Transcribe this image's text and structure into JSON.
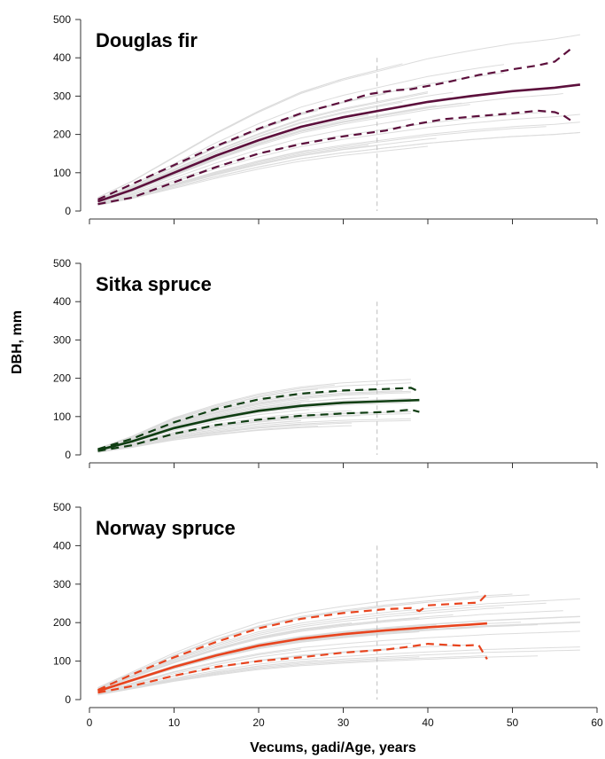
{
  "chart_data": {
    "type": "line",
    "ylabel": "DBH, mm",
    "xlabel": "Vecums, gadi/Age, years",
    "x_range": [
      0,
      60
    ],
    "x_ticks": [
      "0",
      "10",
      "20",
      "30",
      "40",
      "50",
      "60"
    ],
    "y_range": [
      0,
      500
    ],
    "y_ticks": [
      "0",
      "100",
      "200",
      "300",
      "400",
      "500"
    ],
    "reference_line_x": 34,
    "panels": [
      {
        "title": "Douglas fir",
        "color": "#5c0f3c",
        "mean": [
          [
            1,
            25
          ],
          [
            5,
            55
          ],
          [
            10,
            100
          ],
          [
            15,
            145
          ],
          [
            20,
            185
          ],
          [
            25,
            220
          ],
          [
            30,
            245
          ],
          [
            35,
            265
          ],
          [
            40,
            285
          ],
          [
            45,
            300
          ],
          [
            50,
            313
          ],
          [
            55,
            322
          ],
          [
            58,
            330
          ]
        ],
        "upper": [
          [
            1,
            30
          ],
          [
            5,
            70
          ],
          [
            10,
            120
          ],
          [
            15,
            170
          ],
          [
            20,
            215
          ],
          [
            25,
            255
          ],
          [
            30,
            285
          ],
          [
            33,
            305
          ],
          [
            36,
            315
          ],
          [
            38,
            318
          ],
          [
            42,
            335
          ],
          [
            46,
            355
          ],
          [
            50,
            370
          ],
          [
            53,
            380
          ],
          [
            55,
            390
          ],
          [
            57,
            425
          ]
        ],
        "lower": [
          [
            1,
            18
          ],
          [
            5,
            35
          ],
          [
            10,
            75
          ],
          [
            15,
            115
          ],
          [
            20,
            150
          ],
          [
            25,
            175
          ],
          [
            30,
            195
          ],
          [
            35,
            210
          ],
          [
            38,
            225
          ],
          [
            42,
            240
          ],
          [
            46,
            248
          ],
          [
            50,
            255
          ],
          [
            53,
            262
          ],
          [
            55,
            258
          ],
          [
            56,
            250
          ],
          [
            57,
            235
          ]
        ],
        "background_max_age": 58
      },
      {
        "title": "Sitka spruce",
        "color": "#0f3d12",
        "mean": [
          [
            1,
            12
          ],
          [
            5,
            35
          ],
          [
            10,
            70
          ],
          [
            15,
            95
          ],
          [
            20,
            115
          ],
          [
            25,
            128
          ],
          [
            30,
            136
          ],
          [
            35,
            140
          ],
          [
            39,
            143
          ]
        ],
        "upper": [
          [
            1,
            15
          ],
          [
            5,
            42
          ],
          [
            10,
            85
          ],
          [
            15,
            120
          ],
          [
            20,
            145
          ],
          [
            25,
            160
          ],
          [
            30,
            168
          ],
          [
            35,
            172
          ],
          [
            38,
            175
          ],
          [
            39,
            165
          ]
        ],
        "lower": [
          [
            1,
            10
          ],
          [
            5,
            25
          ],
          [
            10,
            55
          ],
          [
            15,
            78
          ],
          [
            20,
            92
          ],
          [
            25,
            102
          ],
          [
            30,
            108
          ],
          [
            35,
            112
          ],
          [
            38,
            118
          ],
          [
            39,
            112
          ]
        ],
        "background_max_age": 38
      },
      {
        "title": "Norway spruce",
        "color": "#e8441e",
        "mean": [
          [
            1,
            22
          ],
          [
            5,
            50
          ],
          [
            10,
            85
          ],
          [
            15,
            115
          ],
          [
            20,
            140
          ],
          [
            25,
            158
          ],
          [
            30,
            170
          ],
          [
            35,
            180
          ],
          [
            40,
            188
          ],
          [
            45,
            195
          ],
          [
            47,
            198
          ]
        ],
        "upper": [
          [
            1,
            25
          ],
          [
            5,
            65
          ],
          [
            10,
            110
          ],
          [
            15,
            150
          ],
          [
            20,
            185
          ],
          [
            25,
            210
          ],
          [
            30,
            225
          ],
          [
            35,
            235
          ],
          [
            38,
            238
          ],
          [
            39,
            230
          ],
          [
            40,
            245
          ],
          [
            44,
            250
          ],
          [
            46,
            252
          ],
          [
            47,
            275
          ]
        ],
        "lower": [
          [
            1,
            18
          ],
          [
            5,
            35
          ],
          [
            10,
            62
          ],
          [
            15,
            85
          ],
          [
            20,
            100
          ],
          [
            25,
            110
          ],
          [
            30,
            122
          ],
          [
            35,
            130
          ],
          [
            38,
            138
          ],
          [
            40,
            145
          ],
          [
            44,
            140
          ],
          [
            46,
            142
          ],
          [
            47,
            105
          ]
        ],
        "background_max_age": 58
      }
    ]
  }
}
